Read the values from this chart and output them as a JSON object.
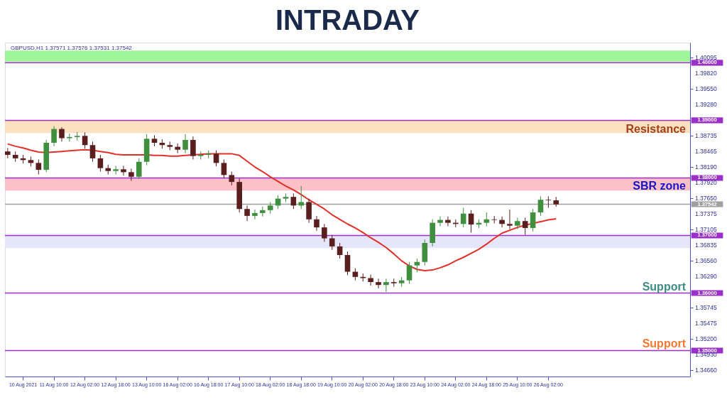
{
  "chart_data": {
    "type": "candlestick",
    "title": "INTRADAY",
    "categories": [
      null,
      null,
      "10 Aug 2021",
      null,
      null,
      null,
      "11 Aug 10:00",
      null,
      null,
      null,
      "12 Aug 02:00",
      null,
      null,
      null,
      "12 Aug 18:00",
      null,
      null,
      null,
      "13 Aug 10:00",
      null,
      null,
      null,
      "16 Aug 02:00",
      null,
      null,
      null,
      "16 Aug 18:00",
      null,
      null,
      null,
      "17 Aug 10:00",
      null,
      null,
      null,
      "18 Aug 02:00",
      null,
      null,
      null,
      "18 Aug 18:00",
      null,
      null,
      null,
      "19 Aug 10:00",
      null,
      null,
      null,
      "20 Aug 02:00",
      null,
      null,
      null,
      "20 Aug 18:00",
      null,
      null,
      null,
      "23 Aug 10:00",
      null,
      null,
      null,
      "24 Aug 02:00",
      null,
      null,
      null,
      "24 Aug 18:00",
      null,
      null,
      null,
      "25 Aug 10:00",
      null,
      null,
      null,
      "26 Aug 02:00",
      null,
      null,
      null,
      null,
      null,
      null,
      null,
      null,
      null,
      null,
      null,
      null,
      null,
      null,
      null,
      null,
      null,
      null
    ],
    "ohlc": [
      [
        1.3846,
        1.3852,
        1.3834,
        1.384
      ],
      [
        1.384,
        1.3846,
        1.3828,
        1.3834
      ],
      [
        1.3834,
        1.384,
        1.3825,
        1.3831
      ],
      [
        1.3831,
        1.3837,
        1.382,
        1.3826
      ],
      [
        1.3826,
        1.3832,
        1.3806,
        1.3814
      ],
      [
        1.3814,
        1.3866,
        1.381,
        1.3861
      ],
      [
        1.3861,
        1.389,
        1.3855,
        1.3885
      ],
      [
        1.3885,
        1.3888,
        1.3863,
        1.3869
      ],
      [
        1.3869,
        1.3877,
        1.3863,
        1.3871
      ],
      [
        1.3871,
        1.388,
        1.3865,
        1.3873
      ],
      [
        1.3873,
        1.3879,
        1.3851,
        1.3857
      ],
      [
        1.3857,
        1.3863,
        1.3828,
        1.3834
      ],
      [
        1.3834,
        1.384,
        1.3811,
        1.3817
      ],
      [
        1.3817,
        1.3823,
        1.3806,
        1.3812
      ],
      [
        1.3812,
        1.3821,
        1.3806,
        1.3815
      ],
      [
        1.3815,
        1.3821,
        1.3804,
        1.381
      ],
      [
        1.381,
        1.3816,
        1.3795,
        1.3802
      ],
      [
        1.3802,
        1.3834,
        1.3798,
        1.3828
      ],
      [
        1.3828,
        1.3876,
        1.3822,
        1.3868
      ],
      [
        1.3868,
        1.3874,
        1.3855,
        1.3861
      ],
      [
        1.3861,
        1.3867,
        1.3851,
        1.3857
      ],
      [
        1.3857,
        1.3863,
        1.3848,
        1.3854
      ],
      [
        1.3854,
        1.386,
        1.3843,
        1.3849
      ],
      [
        1.3849,
        1.3876,
        1.3843,
        1.3866
      ],
      [
        1.3866,
        1.3872,
        1.3832,
        1.3838
      ],
      [
        1.3838,
        1.3846,
        1.3832,
        1.384
      ],
      [
        1.384,
        1.3848,
        1.3834,
        1.3842
      ],
      [
        1.3842,
        1.3848,
        1.382,
        1.3826
      ],
      [
        1.3826,
        1.3832,
        1.3799,
        1.3805
      ],
      [
        1.3805,
        1.3811,
        1.3787,
        1.3793
      ],
      [
        1.3793,
        1.3799,
        1.374,
        1.3746
      ],
      [
        1.3746,
        1.3752,
        1.3725,
        1.3734
      ],
      [
        1.3734,
        1.3745,
        1.3728,
        1.3739
      ],
      [
        1.3739,
        1.375,
        1.3733,
        1.3744
      ],
      [
        1.3744,
        1.3758,
        1.3738,
        1.3752
      ],
      [
        1.3752,
        1.377,
        1.3746,
        1.3764
      ],
      [
        1.3764,
        1.3773,
        1.3758,
        1.3767
      ],
      [
        1.3767,
        1.3773,
        1.3746,
        1.3752
      ],
      [
        1.3752,
        1.3786,
        1.3746,
        1.3758
      ],
      [
        1.3758,
        1.3764,
        1.3722,
        1.3728
      ],
      [
        1.3728,
        1.3734,
        1.3708,
        1.3714
      ],
      [
        1.3714,
        1.372,
        1.3689,
        1.3695
      ],
      [
        1.3695,
        1.3701,
        1.3675,
        1.3681
      ],
      [
        1.3681,
        1.3687,
        1.366,
        1.3666
      ],
      [
        1.3666,
        1.3672,
        1.3631,
        1.3637
      ],
      [
        1.3637,
        1.3643,
        1.3622,
        1.3628
      ],
      [
        1.3628,
        1.3634,
        1.362,
        1.3626
      ],
      [
        1.3626,
        1.3632,
        1.3613,
        1.3619
      ],
      [
        1.3619,
        1.3625,
        1.3608,
        1.3614
      ],
      [
        1.3614,
        1.3625,
        1.3602,
        1.3619
      ],
      [
        1.3619,
        1.3625,
        1.3611,
        1.3617
      ],
      [
        1.3617,
        1.3628,
        1.3611,
        1.3622
      ],
      [
        1.3622,
        1.3654,
        1.3616,
        1.3648
      ],
      [
        1.3648,
        1.366,
        1.3636,
        1.3654
      ],
      [
        1.3654,
        1.3693,
        1.3648,
        1.3687
      ],
      [
        1.3687,
        1.3728,
        1.3681,
        1.3722
      ],
      [
        1.3722,
        1.3733,
        1.3716,
        1.3727
      ],
      [
        1.3727,
        1.3733,
        1.3716,
        1.3722
      ],
      [
        1.3722,
        1.3728,
        1.3714,
        1.372
      ],
      [
        1.372,
        1.3748,
        1.3714,
        1.3738
      ],
      [
        1.3738,
        1.3744,
        1.3705,
        1.3719
      ],
      [
        1.3719,
        1.3728,
        1.3713,
        1.3722
      ],
      [
        1.3722,
        1.374,
        1.3716,
        1.3728
      ],
      [
        1.3728,
        1.3734,
        1.3721,
        1.3727
      ],
      [
        1.3727,
        1.3733,
        1.3714,
        1.372
      ],
      [
        1.372,
        1.3745,
        1.3711,
        1.3717
      ],
      [
        1.3717,
        1.3731,
        1.3711,
        1.3725
      ],
      [
        1.3725,
        1.3731,
        1.3701,
        1.3713
      ],
      [
        1.3713,
        1.3746,
        1.3707,
        1.374
      ],
      [
        1.374,
        1.3768,
        1.3734,
        1.3762
      ],
      [
        1.3762,
        1.3768,
        1.3748,
        1.3761
      ],
      [
        1.3761,
        1.3767,
        1.375,
        1.3754
      ],
      null,
      null,
      null,
      null,
      null,
      null,
      null,
      null,
      null,
      null,
      null,
      null,
      null,
      null,
      null,
      null,
      null
    ],
    "series": [
      {
        "type": "line",
        "color": "#e0302a",
        "values": [
          1.3859,
          1.3855,
          1.3852,
          1.3848,
          1.3845,
          1.3844,
          1.3845,
          1.3846,
          1.3847,
          1.3848,
          1.3849,
          1.3848,
          1.3846,
          1.3844,
          1.3841,
          1.384,
          1.384,
          1.384,
          1.384,
          1.3839,
          1.3839,
          1.3838,
          1.3838,
          1.3839,
          1.384,
          1.3841,
          1.3842,
          1.3842,
          1.3842,
          1.3842,
          1.3839,
          1.3829,
          1.3819,
          1.3811,
          1.3802,
          1.3794,
          1.3786,
          1.3779,
          1.3771,
          1.3762,
          1.3754,
          1.3746,
          1.3736,
          1.3728,
          1.372,
          1.3713,
          1.3705,
          1.3696,
          1.3688,
          1.3679,
          1.3668,
          1.3656,
          1.3647,
          1.3641,
          1.3639,
          1.364,
          1.3644,
          1.3649,
          1.3656,
          1.3662,
          1.3669,
          1.3676,
          1.3685,
          1.3695,
          1.3704,
          1.3709,
          1.3714,
          1.3718,
          1.3721,
          1.3724,
          1.3727,
          1.3729,
          null,
          null,
          null,
          null,
          null,
          null,
          null,
          null,
          null,
          null,
          null,
          null,
          null,
          null,
          null,
          null,
          null
        ]
      }
    ],
    "ylim": [
      1.3455,
      1.4035
    ],
    "yticks": [
      {
        "value": 1.40095,
        "label": "1.40095"
      },
      {
        "value": 1.3982,
        "label": "1.39820"
      },
      {
        "value": 1.3955,
        "label": "1.39550"
      },
      {
        "value": 1.3928,
        "label": "1.39280"
      },
      {
        "value": 1.38735,
        "label": "1.38735"
      },
      {
        "value": 1.38465,
        "label": "1.38465"
      },
      {
        "value": 1.3819,
        "label": "1.38190"
      },
      {
        "value": 1.3792,
        "label": "1.37920"
      },
      {
        "value": 1.3765,
        "label": "1.37650"
      },
      {
        "value": 1.37375,
        "label": "1.37375"
      },
      {
        "value": 1.37105,
        "label": "1.37105"
      },
      {
        "value": 1.36835,
        "label": "1.36835"
      },
      {
        "value": 1.3656,
        "label": "1.36560"
      },
      {
        "value": 1.3629,
        "label": "1.36290"
      },
      {
        "value": 1.35745,
        "label": "1.35745"
      },
      {
        "value": 1.35475,
        "label": "1.35475"
      },
      {
        "value": 1.352,
        "label": "1.35200"
      },
      {
        "value": 1.3493,
        "label": "1.34930"
      },
      {
        "value": 1.3466,
        "label": "1.34660"
      }
    ],
    "bands": [
      {
        "axis": "y",
        "from": 1.4002,
        "to": 1.4021,
        "color": "#9ef59a"
      },
      {
        "axis": "y",
        "from": 1.3878,
        "to": 1.39,
        "color": "#fde0c0"
      },
      {
        "axis": "y",
        "from": 1.3778,
        "to": 1.38,
        "color": "#fdc0c6"
      },
      {
        "axis": "y",
        "from": 1.3678,
        "to": 1.37,
        "color": "#e6e6fa"
      }
    ],
    "ref_lines": [
      {
        "axis": "y",
        "value": 1.4,
        "label": "1.40000",
        "color": "#9b30c8"
      },
      {
        "axis": "y",
        "value": 1.39,
        "label": "1.39000",
        "color": "#9b30c8"
      },
      {
        "axis": "y",
        "value": 1.38,
        "label": "1.38000",
        "color": "#9b30c8"
      },
      {
        "axis": "y",
        "value": 1.37542,
        "label": "1.37542",
        "color": "#a0a0a0"
      },
      {
        "axis": "y",
        "value": 1.37,
        "label": "1.37000",
        "color": "#9b30c8"
      },
      {
        "axis": "y",
        "value": 1.36,
        "label": "1.36000",
        "color": "#9b30c8"
      },
      {
        "axis": "y",
        "value": 1.35,
        "label": "1.35000",
        "color": "#9b30c8"
      }
    ],
    "annotations": [
      "GBPUSD,H1  1.37571 1.37576 1.37531 1.37542",
      {
        "text": "Resistance",
        "y": 1.3884
      },
      "SBR zone",
      "Support",
      "Support"
    ],
    "grid": false
  }
}
